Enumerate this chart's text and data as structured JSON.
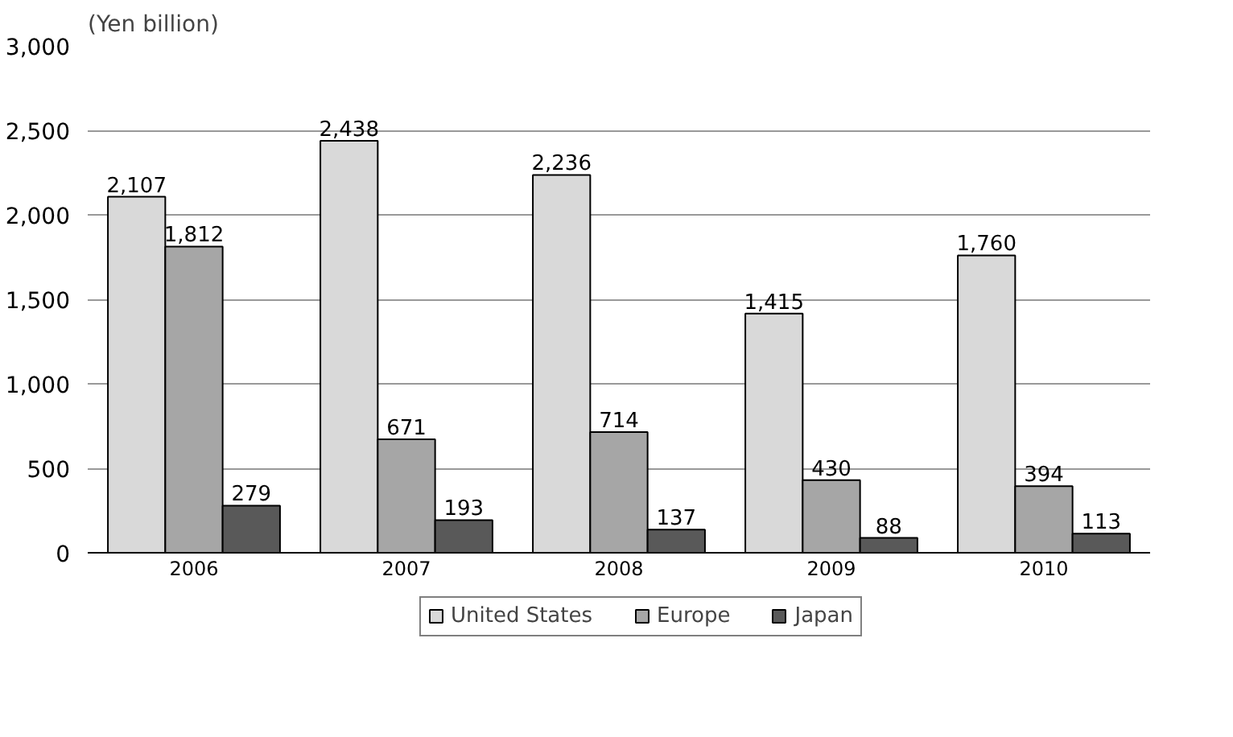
{
  "chart_data": {
    "type": "bar",
    "ylabel": "(Yen billion)",
    "categories": [
      "2006",
      "2007",
      "2008",
      "2009",
      "2010"
    ],
    "series": [
      {
        "name": "United States",
        "color": "#d9d9d9",
        "values": [
          2107,
          2438,
          2236,
          1415,
          1760
        ],
        "value_labels": [
          "2,107",
          "2,438",
          "2,236",
          "1,415",
          "1,760"
        ]
      },
      {
        "name": "Europe",
        "color": "#a6a6a6",
        "values": [
          1812,
          671,
          714,
          430,
          394
        ],
        "value_labels": [
          "1,812",
          "671",
          "714",
          "430",
          "394"
        ]
      },
      {
        "name": "Japan",
        "color": "#595959",
        "values": [
          279,
          193,
          137,
          88,
          113
        ],
        "value_labels": [
          "279",
          "193",
          "137",
          "88",
          "113"
        ]
      }
    ],
    "ylim": [
      0,
      3000
    ],
    "yticks": [
      0,
      {
        "value": 500,
        "label": "500"
      },
      {
        "value": 1000,
        "label": "1,000"
      },
      {
        "value": 1500,
        "label": "1,500"
      },
      {
        "value": 2000,
        "label": "2,000"
      },
      {
        "value": 2500,
        "label": "2,500"
      },
      {
        "value": 3000,
        "label": "3,000"
      }
    ],
    "grid": "y",
    "legend": "bottom"
  }
}
